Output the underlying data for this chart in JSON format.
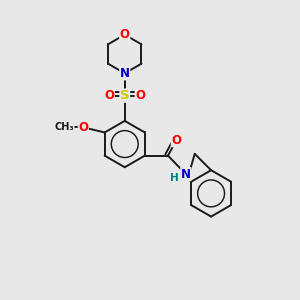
{
  "bg_color": "#e8e8e8",
  "bond_color": "#1a1a1a",
  "atom_colors": {
    "O": "#ff0000",
    "N": "#0000cc",
    "S": "#cccc00",
    "NH_color": "#008080",
    "C": "#1a1a1a"
  },
  "lw": 1.4,
  "fs": 8.5,
  "scale": 1.0
}
